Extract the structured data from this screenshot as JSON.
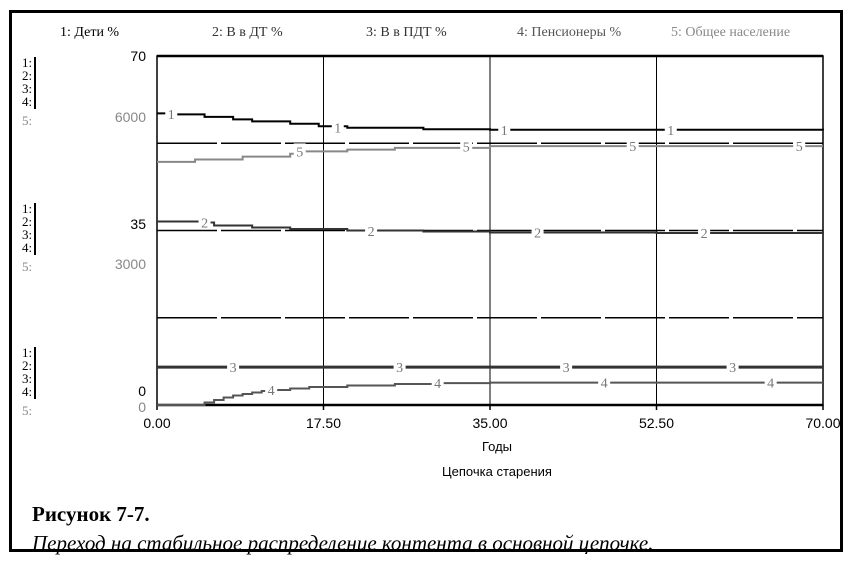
{
  "chart_data": {
    "type": "line",
    "xlabel": "Годы",
    "title": "Цепочка старения",
    "xlim": [
      0,
      70
    ],
    "x_ticks": [
      "0.00",
      "17.50",
      "35.00",
      "52.50",
      "70.00"
    ],
    "axis_pct": {
      "top": "70",
      "mid": "35",
      "bottom": "0"
    },
    "axis_pop": {
      "top": "6000",
      "mid": "3000",
      "bottom": "0"
    },
    "axis_index_labels": [
      "1:",
      "2:",
      "3:",
      "4:",
      "5:"
    ],
    "legend": [
      {
        "num": "1:",
        "name": "Дети %",
        "color": "#000000"
      },
      {
        "num": "2:",
        "name": "В в ДТ %",
        "color": "#333333"
      },
      {
        "num": "3:",
        "name": "В в ПДТ %",
        "color": "#333333"
      },
      {
        "num": "4:",
        "name": "Пенсионеры %",
        "color": "#555555"
      },
      {
        "num": "5:",
        "name": "Общее население",
        "color": "#888888"
      }
    ],
    "series": [
      {
        "id": "1",
        "scale": "pct",
        "color": "#000000",
        "width": 2,
        "x": [
          0,
          2,
          5,
          8,
          10,
          14,
          17,
          20,
          28,
          35,
          52.5,
          70
        ],
        "y": [
          58.5,
          58.3,
          57.8,
          57.3,
          56.9,
          56.4,
          55.9,
          55.6,
          55.3,
          55.2,
          55.2,
          55.1
        ]
      },
      {
        "id": "2",
        "scale": "pct",
        "color": "#333333",
        "width": 2,
        "x": [
          0,
          5,
          6,
          10,
          14,
          20,
          28,
          35,
          52.5,
          70
        ],
        "y": [
          36.8,
          36.6,
          36.0,
          35.6,
          35.3,
          35.0,
          34.8,
          34.6,
          34.5,
          34.4
        ]
      },
      {
        "id": "3",
        "scale": "pct",
        "color": "#333333",
        "width": 3,
        "x": [
          0,
          70
        ],
        "y": [
          7.6,
          7.6
        ]
      },
      {
        "id": "4",
        "scale": "pct",
        "color": "#555555",
        "width": 2,
        "x": [
          0,
          4,
          5,
          6,
          7,
          8,
          9,
          10,
          11,
          12,
          14,
          16,
          20,
          25,
          29,
          35,
          52.5,
          70
        ],
        "y": [
          0,
          0,
          0.5,
          1.0,
          1.5,
          1.9,
          2.2,
          2.5,
          2.8,
          3.0,
          3.3,
          3.6,
          3.9,
          4.2,
          4.4,
          4.5,
          4.5,
          4.5
        ]
      },
      {
        "id": "5",
        "scale": "pop",
        "color": "#888888",
        "width": 2,
        "x": [
          0,
          4,
          9,
          14,
          15,
          20,
          25,
          35,
          52.5,
          70
        ],
        "y": [
          4180,
          4220,
          4270,
          4320,
          4360,
          4390,
          4420,
          4450,
          4450,
          4450
        ]
      }
    ],
    "marker_x": {
      "1": [
        1.5,
        19,
        36.5,
        54
      ],
      "2": [
        5,
        22.5,
        40,
        57.5
      ],
      "3": [
        8,
        25.5,
        43,
        60.5
      ],
      "4": [
        12,
        29.5,
        47,
        64.5
      ],
      "5": [
        15,
        32.5,
        50,
        67.5
      ]
    }
  },
  "figure": {
    "label": "Рисунок 7-7.",
    "caption": "Переход на стабильное распределение контента в основной цепочке."
  }
}
